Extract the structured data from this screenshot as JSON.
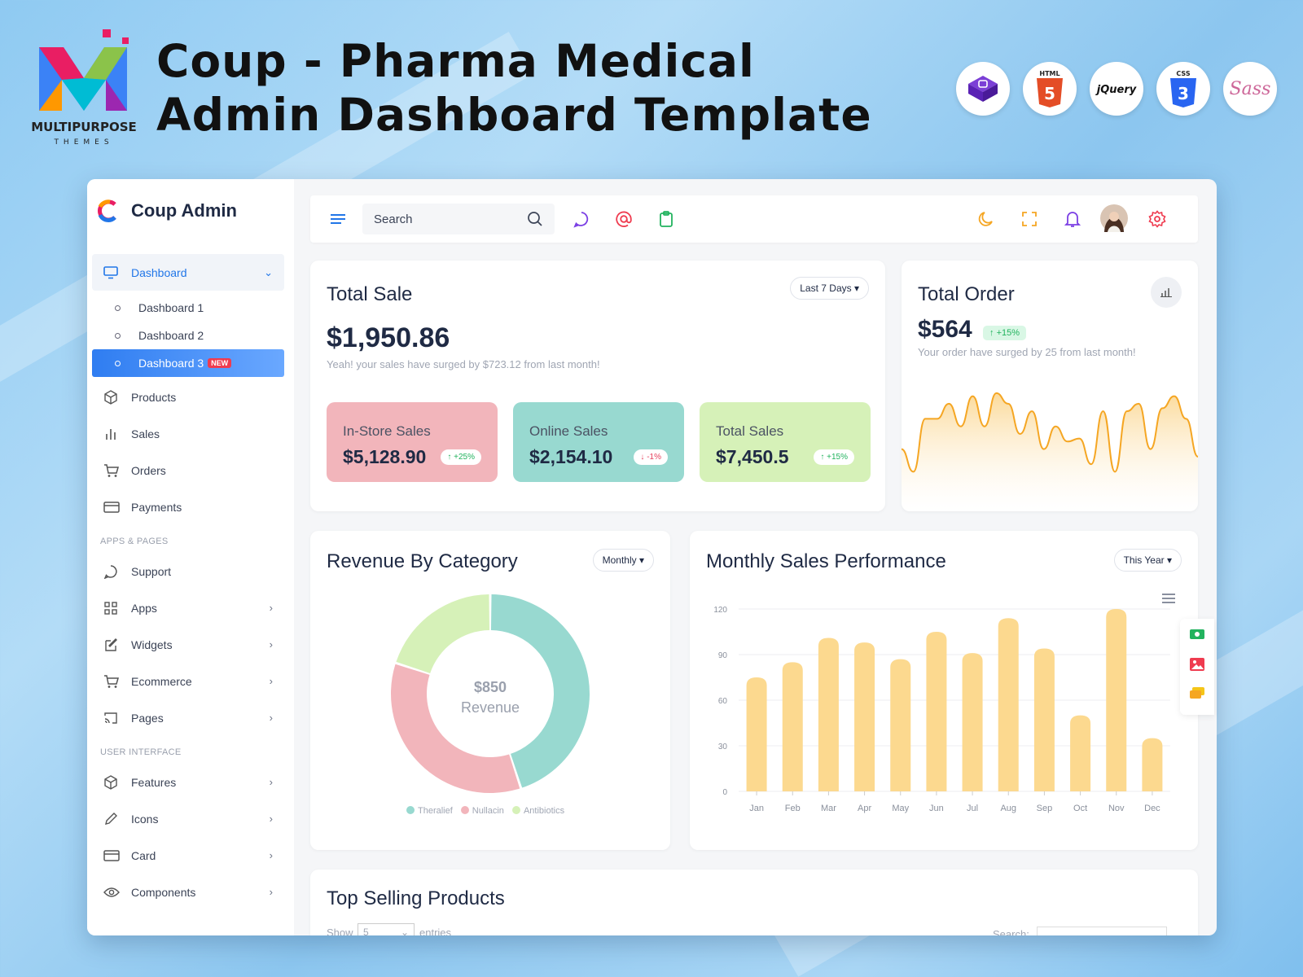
{
  "banner": {
    "title": "Coup - Pharma Medical Admin Dashboard Template",
    "logo_brand": "MULTIPURPOSE",
    "logo_sub": "THEMES",
    "tech_badges": [
      "bootstrap-icon",
      "html5-icon",
      "jquery-icon",
      "css3-icon",
      "sass-icon"
    ],
    "html_label": "HTML",
    "jquery_label": "jQuery",
    "css_label": "CSS",
    "sass_label": "Sass"
  },
  "app": {
    "brand": "Coup Admin",
    "search_placeholder": "Search"
  },
  "sidebar": {
    "dashboard": "Dashboard",
    "dashboard_items": [
      "Dashboard 1",
      "Dashboard 2",
      "Dashboard 3"
    ],
    "new_badge": "NEW",
    "main_items": [
      "Products",
      "Sales",
      "Orders",
      "Payments"
    ],
    "section_apps": "APPS & PAGES",
    "apps_items": [
      "Support",
      "Apps",
      "Widgets",
      "Ecommerce",
      "Pages"
    ],
    "section_ui": "USER INTERFACE",
    "ui_items": [
      "Features",
      "Icons",
      "Card",
      "Components"
    ]
  },
  "total_sale": {
    "title": "Total Sale",
    "range": "Last 7 Days",
    "value": "$1,950.86",
    "note": "Yeah! your sales have surged by $723.12 from last month!",
    "cards": [
      {
        "label": "In-Store Sales",
        "value": "$5,128.90",
        "delta": "+25%",
        "color": "#f2b5bb"
      },
      {
        "label": "Online Sales",
        "value": "$2,154.10",
        "delta": "-1%",
        "color": "#98d9d0"
      },
      {
        "label": "Total Sales",
        "value": "$7,450.5",
        "delta": "+15%",
        "color": "#d6f1b8"
      }
    ]
  },
  "total_order": {
    "title": "Total Order",
    "value": "$564",
    "delta": "+15%",
    "note": "Your order have surged by 25 from last month!"
  },
  "revenue": {
    "title": "Revenue By Category",
    "range": "Monthly",
    "center_value": "$850",
    "center_label": "Revenue"
  },
  "monthly": {
    "title": "Monthly Sales Performance",
    "range": "This Year"
  },
  "top_selling": {
    "title": "Top Selling Products",
    "show": "Show",
    "show_value": "5",
    "entries": "entries",
    "search": "Search:"
  },
  "colors": {
    "accent": "#2176e8",
    "bar": "#fcd98f",
    "area_line": "#f5a623"
  },
  "chart_data": [
    {
      "type": "pie",
      "title": "Revenue By Category",
      "labels": [
        "Theralief",
        "Nullacin",
        "Antibiotics"
      ],
      "values": [
        45,
        35,
        20
      ],
      "colors": [
        "#98d9d0",
        "#f2b5bb",
        "#d6f1b8"
      ],
      "legend": "bottom"
    },
    {
      "type": "bar",
      "title": "Monthly Sales Performance",
      "categories": [
        "Jan",
        "Feb",
        "Mar",
        "Apr",
        "May",
        "Jun",
        "Jul",
        "Aug",
        "Sep",
        "Oct",
        "Nov",
        "Dec"
      ],
      "values": [
        75,
        85,
        101,
        98,
        87,
        105,
        91,
        114,
        94,
        50,
        120,
        35
      ],
      "yticks": [
        0,
        30,
        60,
        90,
        120
      ],
      "ylim": [
        0,
        120
      ],
      "grid": true
    },
    {
      "type": "area",
      "title": "Total Order",
      "values": [
        55,
        40,
        75,
        75,
        85,
        70,
        90,
        70,
        92,
        85,
        65,
        80,
        55,
        70,
        60,
        62,
        45,
        80,
        40,
        80,
        85,
        55,
        82,
        90,
        75,
        50
      ],
      "ylim": [
        30,
        100
      ]
    }
  ]
}
